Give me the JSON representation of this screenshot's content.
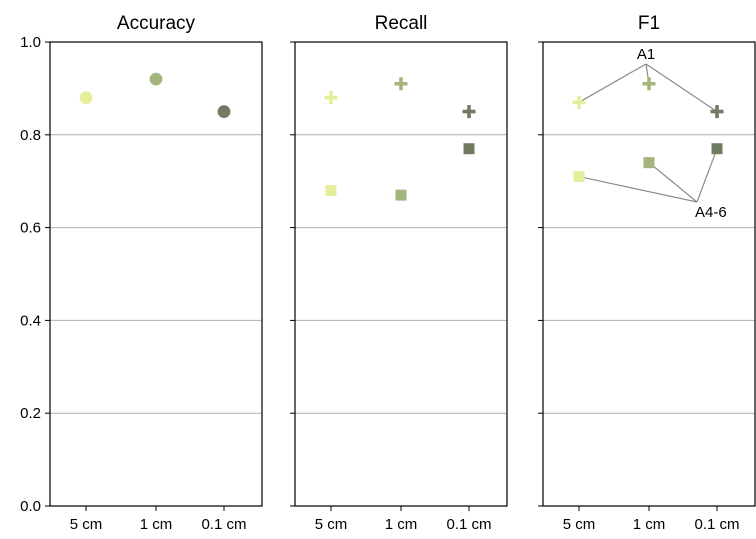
{
  "chart_data": {
    "type": "scatter",
    "categories": [
      "5 cm",
      "1 cm",
      "0.1 cm"
    ],
    "ylim": [
      0.0,
      1.0
    ],
    "yticks": [
      "0.0",
      "0.2",
      "0.4",
      "0.6",
      "0.8",
      "1.0"
    ],
    "grid": true,
    "colors": [
      "#e6ee9c",
      "#a5b57e",
      "#707b62"
    ],
    "panels": [
      {
        "title": "Accuracy",
        "series": [
          {
            "marker": "circle",
            "values": [
              0.88,
              0.92,
              0.85
            ]
          }
        ]
      },
      {
        "title": "Recall",
        "series": [
          {
            "marker": "plus",
            "values": [
              0.88,
              0.91,
              0.85
            ]
          },
          {
            "marker": "square",
            "values": [
              0.68,
              0.67,
              0.77
            ]
          }
        ]
      },
      {
        "title": "F1",
        "series": [
          {
            "marker": "plus",
            "values": [
              0.87,
              0.91,
              0.85
            ]
          },
          {
            "marker": "square",
            "values": [
              0.71,
              0.74,
              0.77
            ]
          }
        ],
        "annotations": [
          {
            "text": "A1",
            "series": 0,
            "label_position": "upper-middle"
          },
          {
            "text": "A4-6",
            "series": 1,
            "label_position": "right"
          }
        ]
      }
    ]
  }
}
